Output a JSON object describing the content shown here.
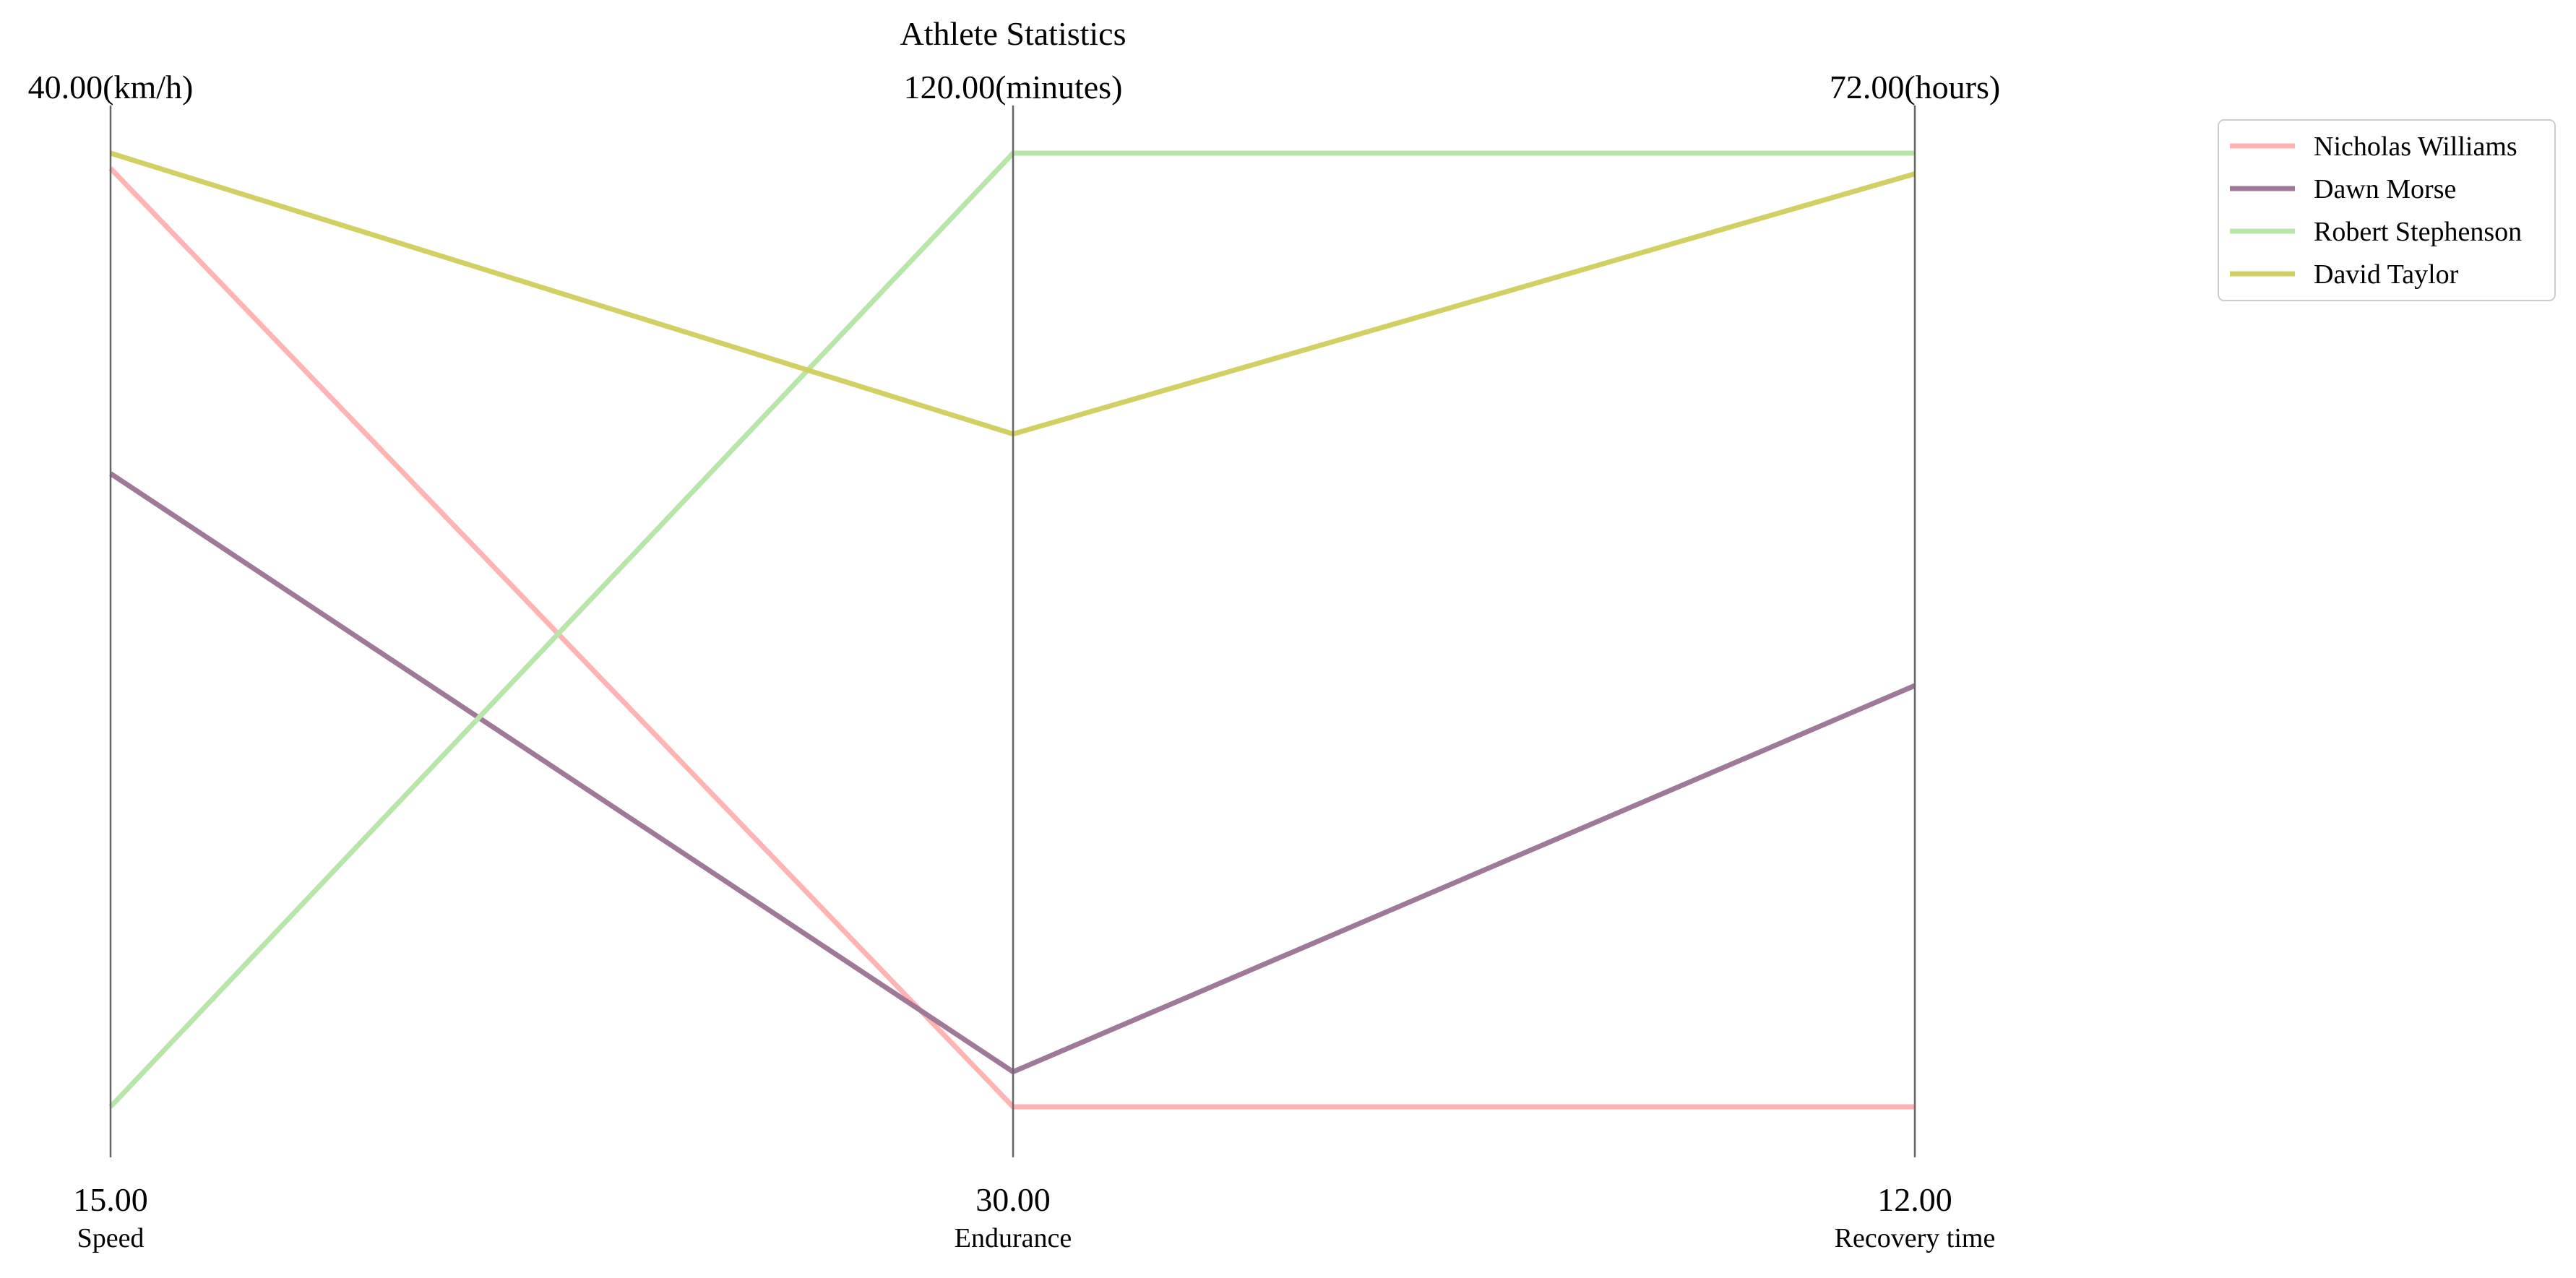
{
  "chart_data": {
    "type": "parallel_coordinates",
    "title": "Athlete Statistics",
    "axes": [
      {
        "name": "Speed",
        "min": 15,
        "max": 40,
        "min_label": "15.00",
        "max_label": "40.00(km/h)"
      },
      {
        "name": "Endurance",
        "min": 30,
        "max": 120,
        "min_label": "30.00",
        "max_label": "120.00(minutes)"
      },
      {
        "name": "Recovery time",
        "min": 12,
        "max": 72,
        "min_label": "12.00",
        "max_label": "72.00(hours)"
      }
    ],
    "series": [
      {
        "name": "Nicholas Williams",
        "color": "#ffb3b3",
        "values": [
          39.6,
          30.0,
          12.0
        ]
      },
      {
        "name": "Dawn Morse",
        "color": "#a07898",
        "values": [
          31.6,
          33.3,
          38.5
        ]
      },
      {
        "name": "Robert Stephenson",
        "color": "#b8e6a8",
        "values": [
          15.0,
          120.0,
          72.0
        ]
      },
      {
        "name": "David Taylor",
        "color": "#d2cf63",
        "values": [
          40.0,
          93.5,
          70.7
        ]
      }
    ],
    "legend_position": "top-right",
    "grid": false
  }
}
